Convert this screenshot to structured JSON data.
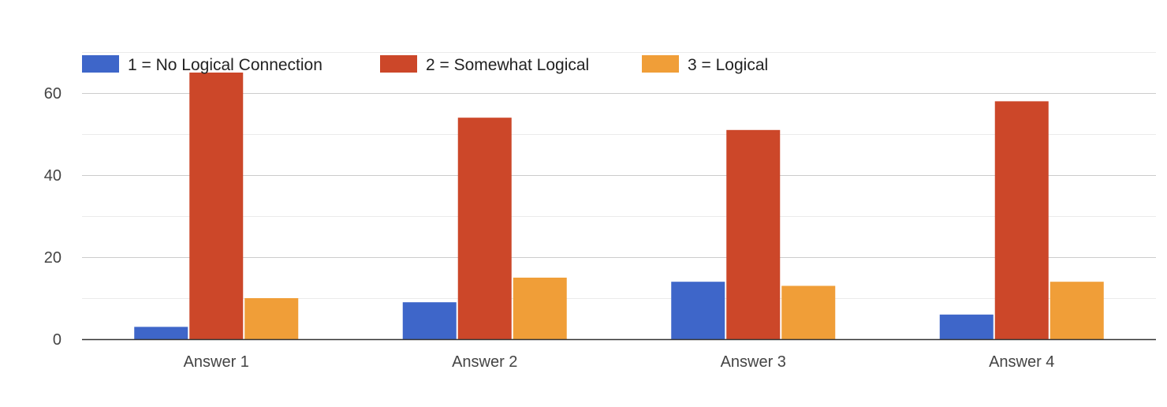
{
  "chart_data": {
    "type": "bar",
    "title": "",
    "xlabel": "",
    "ylabel": "",
    "categories": [
      "Answer 1",
      "Answer 2",
      "Answer 3",
      "Answer 4"
    ],
    "series": [
      {
        "name": "1 = No Logical Connection",
        "color": "#3e66c9",
        "values": [
          3,
          9,
          14,
          6
        ]
      },
      {
        "name": "2 = Somewhat Logical",
        "color": "#cc4729",
        "values": [
          65,
          54,
          51,
          58
        ]
      },
      {
        "name": "3 = Logical",
        "color": "#f09e38",
        "values": [
          10,
          15,
          13,
          14
        ]
      }
    ],
    "ylim": [
      0,
      60
    ],
    "y_ticks": [
      0,
      20,
      40,
      60
    ],
    "grid": true,
    "legend_position": "top-left",
    "colors": {
      "gridline": "#cccccc",
      "minor_gridline": "#ebebeb",
      "baseline": "#333333"
    }
  }
}
